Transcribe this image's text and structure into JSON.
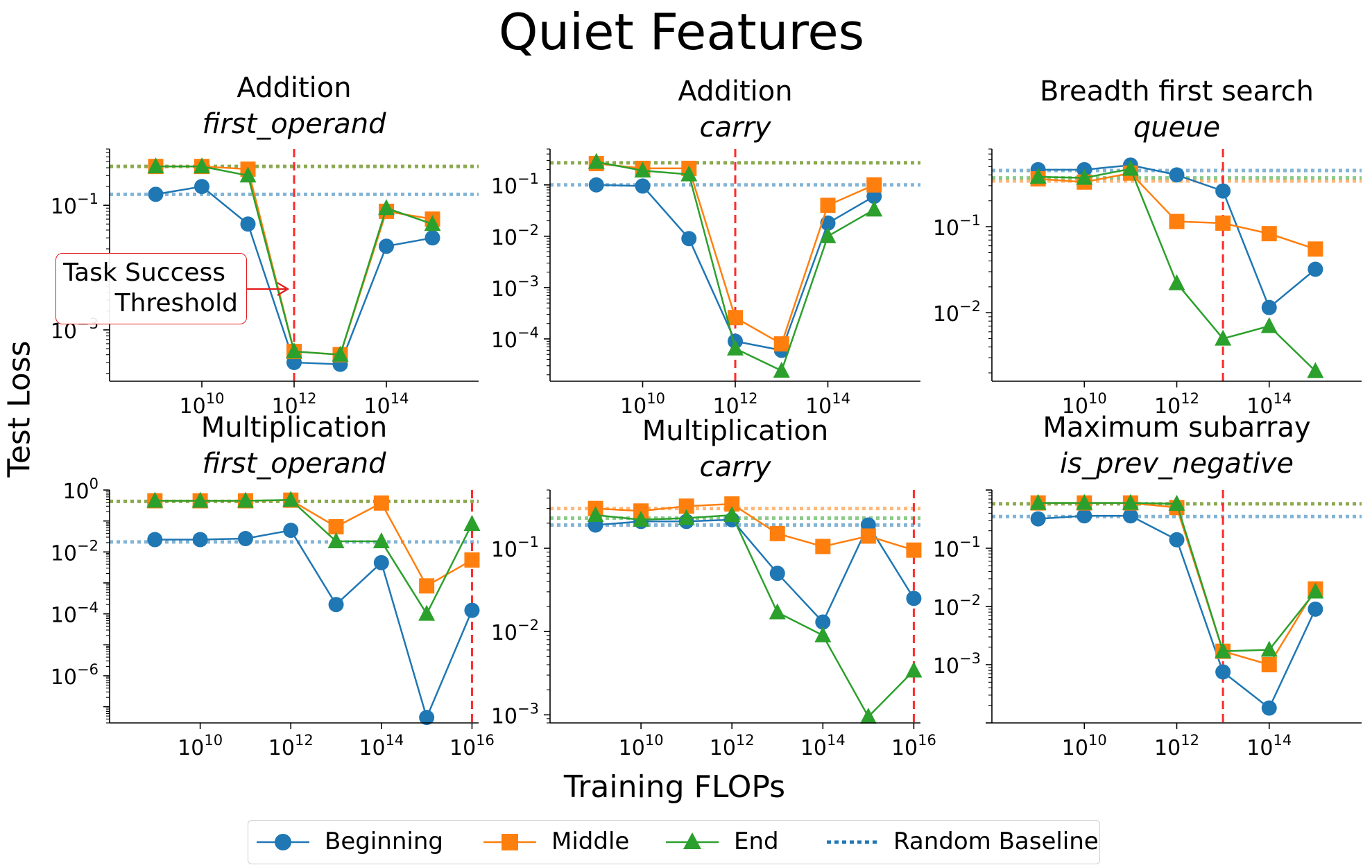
{
  "title": "Quiet Features",
  "xlabel": "Training FLOPs",
  "ylabel": "Test Loss",
  "legend": {
    "entries": [
      {
        "label": "Beginning",
        "color": "#1f77b4",
        "marker": "circle",
        "style": "solid"
      },
      {
        "label": "Middle",
        "color": "#ff7f0e",
        "marker": "square",
        "style": "solid"
      },
      {
        "label": "End",
        "color": "#2ca02c",
        "marker": "triangle",
        "style": "solid"
      },
      {
        "label": "Random Baseline",
        "color": "#1f77b4",
        "marker": "none",
        "style": "dotted"
      }
    ],
    "placement": "bottom-center"
  },
  "annotation": {
    "line1": "Task Success",
    "line2": "Threshold",
    "color": "#e41a1c"
  },
  "chart_data": [
    {
      "type": "line",
      "title": "Addition",
      "subtitle": "first_operand",
      "xscale": "log",
      "yscale": "log",
      "xlim": [
        100000000.0,
        1e+16
      ],
      "ylim": [
        0.00015,
        0.8
      ],
      "xticks": [
        10000000000.0,
        1000000000000.0,
        100000000000000.0
      ],
      "yticks": [
        0.1,
        0.001
      ],
      "threshold_x": 1000000000000.0,
      "x": [
        1000000000.0,
        10000000000.0,
        100000000000.0,
        1000000000000.0,
        10000000000000.0,
        100000000000000.0,
        1000000000000000.0
      ],
      "series": [
        {
          "name": "Beginning",
          "values": [
            0.15,
            0.2,
            0.05,
            0.0003,
            0.00028,
            0.022,
            0.03
          ]
        },
        {
          "name": "Middle",
          "values": [
            0.42,
            0.42,
            0.38,
            0.00045,
            0.0004,
            0.08,
            0.06
          ]
        },
        {
          "name": "End",
          "values": [
            0.42,
            0.42,
            0.3,
            0.00045,
            0.0004,
            0.09,
            0.05
          ]
        }
      ],
      "baselines": [
        {
          "name": "Beginning",
          "value": 0.15
        },
        {
          "name": "Middle",
          "value": 0.42
        },
        {
          "name": "End",
          "value": 0.42
        }
      ]
    },
    {
      "type": "line",
      "title": "Addition",
      "subtitle": "carry",
      "xscale": "log",
      "yscale": "log",
      "xlim": [
        100000000.0,
        1e+16
      ],
      "ylim": [
        1.5e-05,
        0.5
      ],
      "xticks": [
        10000000000.0,
        1000000000000.0,
        100000000000000.0
      ],
      "yticks": [
        0.1,
        0.01,
        0.001,
        0.0001
      ],
      "threshold_x": 1000000000000.0,
      "x": [
        1000000000.0,
        10000000000.0,
        100000000000.0,
        1000000000000.0,
        10000000000000.0,
        100000000000000.0,
        1000000000000000.0
      ],
      "series": [
        {
          "name": "Beginning",
          "values": [
            0.1,
            0.095,
            0.009,
            9e-05,
            6e-05,
            0.018,
            0.06
          ]
        },
        {
          "name": "Middle",
          "values": [
            0.26,
            0.21,
            0.21,
            0.00026,
            8e-05,
            0.04,
            0.1
          ]
        },
        {
          "name": "End",
          "values": [
            0.28,
            0.19,
            0.16,
            6.5e-05,
            2.4e-05,
            0.01,
            0.033
          ]
        }
      ],
      "baselines": [
        {
          "name": "Beginning",
          "value": 0.1
        },
        {
          "name": "Middle",
          "value": 0.27
        },
        {
          "name": "End",
          "value": 0.27
        }
      ]
    },
    {
      "type": "line",
      "title": "Breadth first search",
      "subtitle": "queue",
      "xscale": "log",
      "yscale": "log",
      "xlim": [
        100000000.0,
        1e+16
      ],
      "ylim": [
        0.0016,
        0.8
      ],
      "xticks": [
        10000000000.0,
        1000000000000.0,
        100000000000000.0
      ],
      "yticks": [
        0.1,
        0.01
      ],
      "threshold_x": 10000000000000.0,
      "x": [
        1000000000.0,
        10000000000.0,
        100000000000.0,
        1000000000000.0,
        10000000000000.0,
        100000000000000.0,
        1000000000000000.0
      ],
      "series": [
        {
          "name": "Beginning",
          "values": [
            0.46,
            0.46,
            0.52,
            0.4,
            0.26,
            0.0115,
            0.032
          ]
        },
        {
          "name": "Middle",
          "values": [
            0.36,
            0.33,
            0.42,
            0.115,
            0.11,
            0.083,
            0.055
          ]
        },
        {
          "name": "End",
          "values": [
            0.38,
            0.37,
            0.47,
            0.022,
            0.005,
            0.007,
            0.0021
          ]
        }
      ],
      "baselines": [
        {
          "name": "Beginning",
          "value": 0.45
        },
        {
          "name": "Middle",
          "value": 0.34
        },
        {
          "name": "End",
          "value": 0.37
        }
      ]
    },
    {
      "type": "line",
      "title": "Multiplication",
      "subtitle": "first_operand",
      "xscale": "log",
      "yscale": "log",
      "xlim": [
        100000000.0,
        1.4e+16
      ],
      "ylim": [
        3e-08,
        1
      ],
      "xticks": [
        10000000000.0,
        1000000000000.0,
        100000000000000.0,
        1e+16
      ],
      "yticks": [
        1,
        0.01,
        0.0001,
        1e-06
      ],
      "threshold_x": 1e+16,
      "x": [
        1000000000.0,
        10000000000.0,
        100000000000.0,
        1000000000000.0,
        10000000000000.0,
        100000000000000.0,
        1000000000000000.0,
        1e+16
      ],
      "series": [
        {
          "name": "Beginning",
          "values": [
            0.025,
            0.025,
            0.027,
            0.05,
            0.0002,
            0.0045,
            4.5e-08,
            0.00013
          ]
        },
        {
          "name": "Middle",
          "values": [
            0.45,
            0.45,
            0.45,
            0.47,
            0.065,
            0.38,
            0.0008,
            0.0055
          ]
        },
        {
          "name": "End",
          "values": [
            0.45,
            0.45,
            0.45,
            0.48,
            0.022,
            0.022,
            0.0001,
            0.08
          ]
        }
      ],
      "baselines": [
        {
          "name": "Beginning",
          "value": 0.021
        },
        {
          "name": "Middle",
          "value": 0.43
        },
        {
          "name": "End",
          "value": 0.43
        }
      ]
    },
    {
      "type": "line",
      "title": "Multiplication",
      "subtitle": "carry",
      "xscale": "log",
      "yscale": "log",
      "xlim": [
        100000000.0,
        1.4e+16
      ],
      "ylim": [
        0.0008,
        0.5
      ],
      "xticks": [
        10000000000.0,
        1000000000000.0,
        100000000000000.0,
        1e+16
      ],
      "yticks": [
        0.1,
        0.01,
        0.001
      ],
      "threshold_x": 1e+16,
      "x": [
        1000000000.0,
        10000000000.0,
        100000000000.0,
        1000000000000.0,
        10000000000000.0,
        100000000000000.0,
        1000000000000000.0,
        1e+16
      ],
      "series": [
        {
          "name": "Beginning",
          "values": [
            0.19,
            0.21,
            0.21,
            0.22,
            0.05,
            0.013,
            0.19,
            0.025
          ]
        },
        {
          "name": "Middle",
          "values": [
            0.3,
            0.28,
            0.32,
            0.34,
            0.15,
            0.105,
            0.14,
            0.095
          ]
        },
        {
          "name": "End",
          "values": [
            0.25,
            0.22,
            0.23,
            0.25,
            0.017,
            0.009,
            0.00095,
            0.0034
          ]
        }
      ],
      "baselines": [
        {
          "name": "Beginning",
          "value": 0.19
        },
        {
          "name": "Middle",
          "value": 0.3
        },
        {
          "name": "End",
          "value": 0.23
        }
      ]
    },
    {
      "type": "line",
      "title": "Maximum subarray",
      "subtitle": "is_prev_negative",
      "xscale": "log",
      "yscale": "log",
      "xlim": [
        100000000.0,
        1e+16
      ],
      "ylim": [
        0.0001,
        1
      ],
      "xticks": [
        10000000000.0,
        1000000000000.0,
        100000000000000.0
      ],
      "yticks": [
        0.1,
        0.01,
        0.001
      ],
      "threshold_x": 10000000000000.0,
      "x": [
        1000000000.0,
        10000000000.0,
        100000000000.0,
        1000000000000.0,
        10000000000000.0,
        100000000000000.0,
        1000000000000000.0
      ],
      "series": [
        {
          "name": "Beginning",
          "values": [
            0.32,
            0.36,
            0.36,
            0.14,
            0.00075,
            0.00018,
            0.009
          ]
        },
        {
          "name": "Middle",
          "values": [
            0.6,
            0.6,
            0.6,
            0.5,
            0.0017,
            0.001,
            0.02
          ]
        },
        {
          "name": "End",
          "values": [
            0.6,
            0.6,
            0.6,
            0.58,
            0.0017,
            0.0018,
            0.018
          ]
        }
      ],
      "baselines": [
        {
          "name": "Beginning",
          "value": 0.35
        },
        {
          "name": "Middle",
          "value": 0.58
        },
        {
          "name": "End",
          "value": 0.58
        }
      ]
    }
  ]
}
